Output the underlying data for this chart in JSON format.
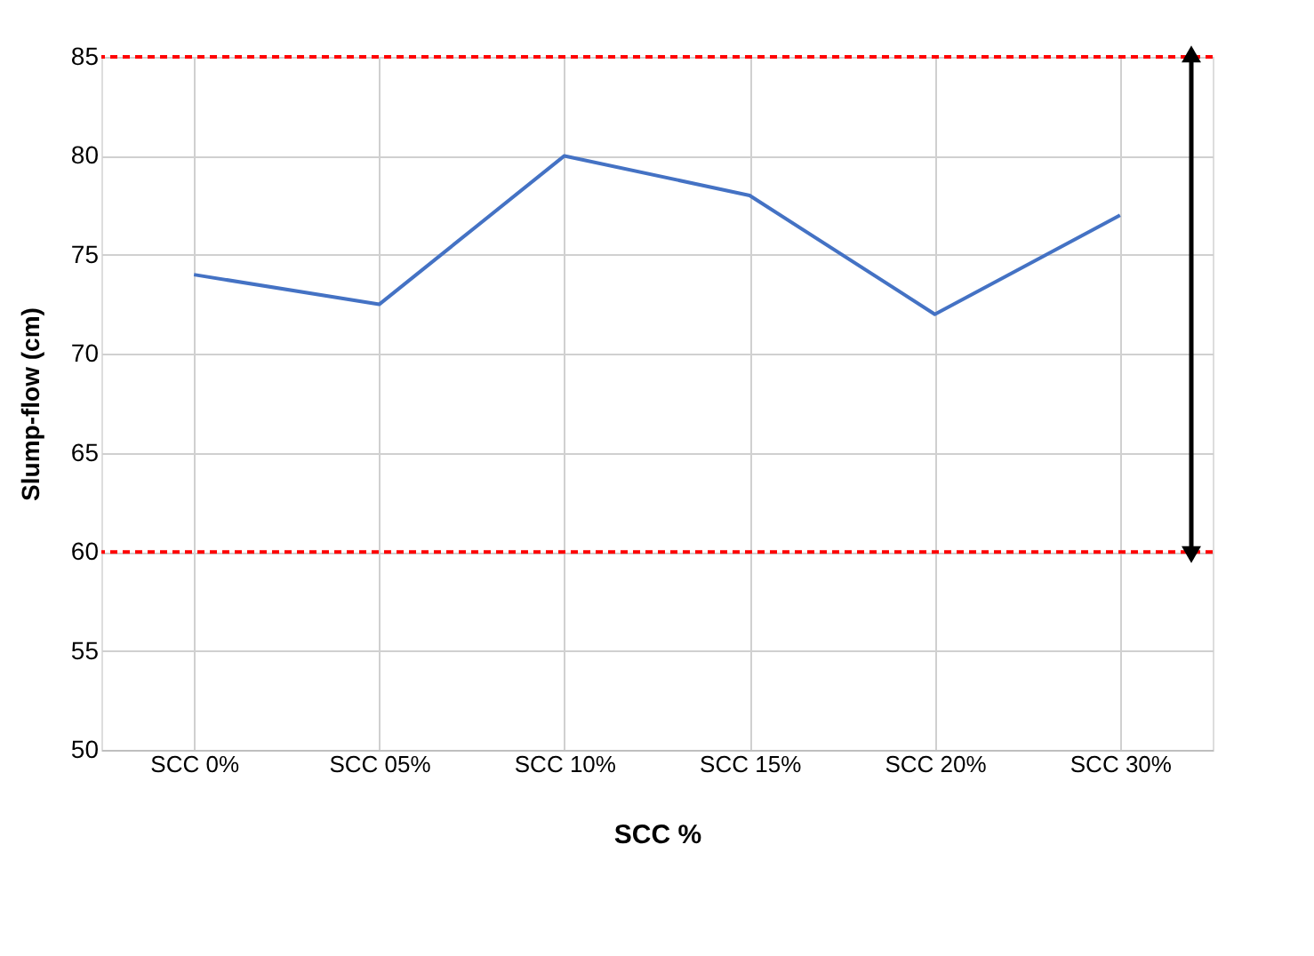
{
  "chart_data": {
    "type": "line",
    "xlabel": "SCC  %",
    "ylabel": "Slump-flow  (cm)",
    "categories": [
      "SCC 0%",
      "SCC  05%",
      "SCC  10%",
      "SCC 15%",
      "SCC  20%",
      "SCC  30%"
    ],
    "series": [
      {
        "color": "#4472c4",
        "values": [
          74,
          72.5,
          80,
          78,
          72,
          77
        ]
      }
    ],
    "ylim": [
      50,
      85
    ],
    "yticks": [
      50,
      55,
      60,
      65,
      70,
      75,
      80,
      85
    ],
    "grid": true,
    "marker": "none",
    "line_style": "solid",
    "ref_lines": [
      {
        "axis": "y",
        "value": 85,
        "color": "#ff0000",
        "line_style": "dashed"
      },
      {
        "axis": "y",
        "value": 60,
        "color": "#ff0000",
        "line_style": "dashed"
      }
    ]
  }
}
